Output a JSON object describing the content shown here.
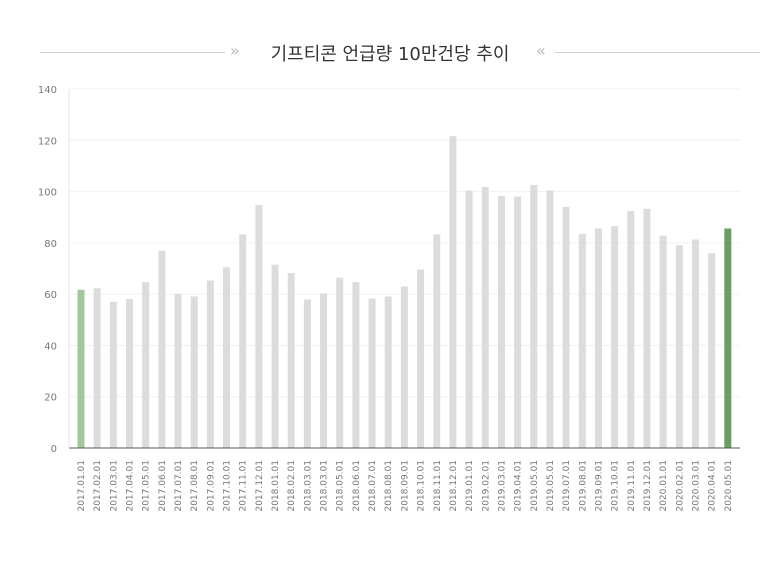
{
  "chart_data": {
    "type": "bar",
    "title": "기프티콘 언급량 10만건당 추이",
    "xlabel": "",
    "ylabel": "",
    "ylim": [
      0,
      140
    ],
    "yticks": [
      0,
      20,
      40,
      60,
      80,
      100,
      120,
      140
    ],
    "grid": true,
    "categories": [
      "2017.01.01",
      "2017.02.01",
      "2017.03.01",
      "2017.04.01",
      "2017.05.01",
      "2017.06.01",
      "2017.07.01",
      "2017.08.01",
      "2017.09.01",
      "2017.10.01",
      "2017.11.01",
      "2017.12.01",
      "2018.01.01",
      "2018.02.01",
      "2018.03.01",
      "2018.03.01",
      "2018.05.01",
      "2018.06.01",
      "2018.07.01",
      "2018.08.01",
      "2018.09.01",
      "2018.10.01",
      "2018.11.01",
      "2018.12.01",
      "2019.01.01",
      "2019.02.01",
      "2019.03.01",
      "2019.04.01",
      "2019.05.01",
      "2019.05.01",
      "2019.07.01",
      "2019.08.01",
      "2019.09.01",
      "2019.10.01",
      "2019.11.01",
      "2019.12.01",
      "2020.01.01",
      "2020.02.01",
      "2020.03.01",
      "2020.04.01",
      "2020.05.01"
    ],
    "values": [
      61.7,
      62.3,
      57.0,
      58.1,
      64.7,
      76.9,
      60.1,
      59.1,
      65.3,
      70.5,
      83.3,
      94.7,
      71.5,
      68.2,
      57.9,
      60.3,
      66.4,
      64.7,
      58.3,
      59.1,
      63.0,
      69.6,
      83.3,
      121.6,
      100.4,
      101.8,
      98.3,
      98.1,
      102.6,
      100.4,
      94.0,
      83.5,
      85.6,
      86.5,
      92.4,
      93.3,
      82.8,
      79.1,
      81.3,
      76.0,
      85.6
    ],
    "colors": {
      "default_bar": "#dcdcdc",
      "first_bar": "#a3c79a",
      "last_bar": "#6a9e63",
      "grid": "#f0f0f0",
      "axis": "#555555"
    },
    "decor": {
      "left_arrows": "»",
      "right_arrows": "«"
    }
  }
}
